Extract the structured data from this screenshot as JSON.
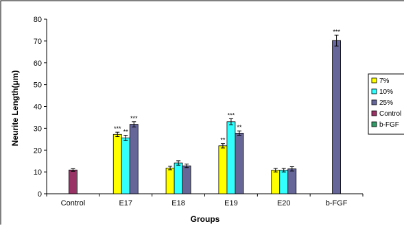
{
  "chart_data": {
    "type": "bar",
    "xlabel": "Groups",
    "ylabel": "Neurite Length(μm)",
    "ylim": [
      0,
      80
    ],
    "yticks": [
      0,
      10,
      20,
      30,
      40,
      50,
      60,
      70,
      80
    ],
    "grid": false,
    "legend_position": "right",
    "categories": [
      "Control",
      "E17",
      "E18",
      "E19",
      "E20",
      "b-FGF"
    ],
    "series": [
      {
        "name": "7%",
        "color": "#ffff00",
        "values": [
          null,
          27.2,
          11.8,
          22.0,
          10.8,
          null
        ],
        "errors": [
          null,
          1.0,
          0.8,
          1.0,
          0.8,
          null
        ],
        "labels": [
          null,
          "***",
          null,
          "**",
          null,
          null
        ]
      },
      {
        "name": "10%",
        "color": "#33ffff",
        "values": [
          null,
          25.6,
          14.1,
          33.0,
          10.8,
          null
        ],
        "errors": [
          null,
          1.2,
          1.0,
          1.4,
          0.8,
          null
        ],
        "labels": [
          null,
          "**",
          null,
          "***",
          null,
          null
        ]
      },
      {
        "name": "25%",
        "color": "#666699",
        "values": [
          null,
          31.8,
          12.8,
          27.8,
          11.4,
          null
        ],
        "errors": [
          null,
          1.2,
          0.8,
          1.0,
          1.0,
          null
        ],
        "labels": [
          null,
          "***",
          null,
          "**",
          null,
          null
        ]
      },
      {
        "name": "Control",
        "color": "#993366",
        "values": [
          10.9,
          null,
          null,
          null,
          null,
          null
        ],
        "errors": [
          0.6,
          null,
          null,
          null,
          null,
          null
        ],
        "labels": [
          null,
          null,
          null,
          null,
          null,
          null
        ]
      },
      {
        "name": "b-FGF",
        "color": "#339966",
        "values": [
          null,
          null,
          null,
          null,
          null,
          70.2
        ],
        "errors": [
          null,
          null,
          null,
          null,
          null,
          2.5
        ],
        "labels": [
          null,
          null,
          null,
          null,
          null,
          "***"
        ]
      }
    ],
    "bar_colors_override": {
      "b-FGF": "#666699"
    }
  }
}
